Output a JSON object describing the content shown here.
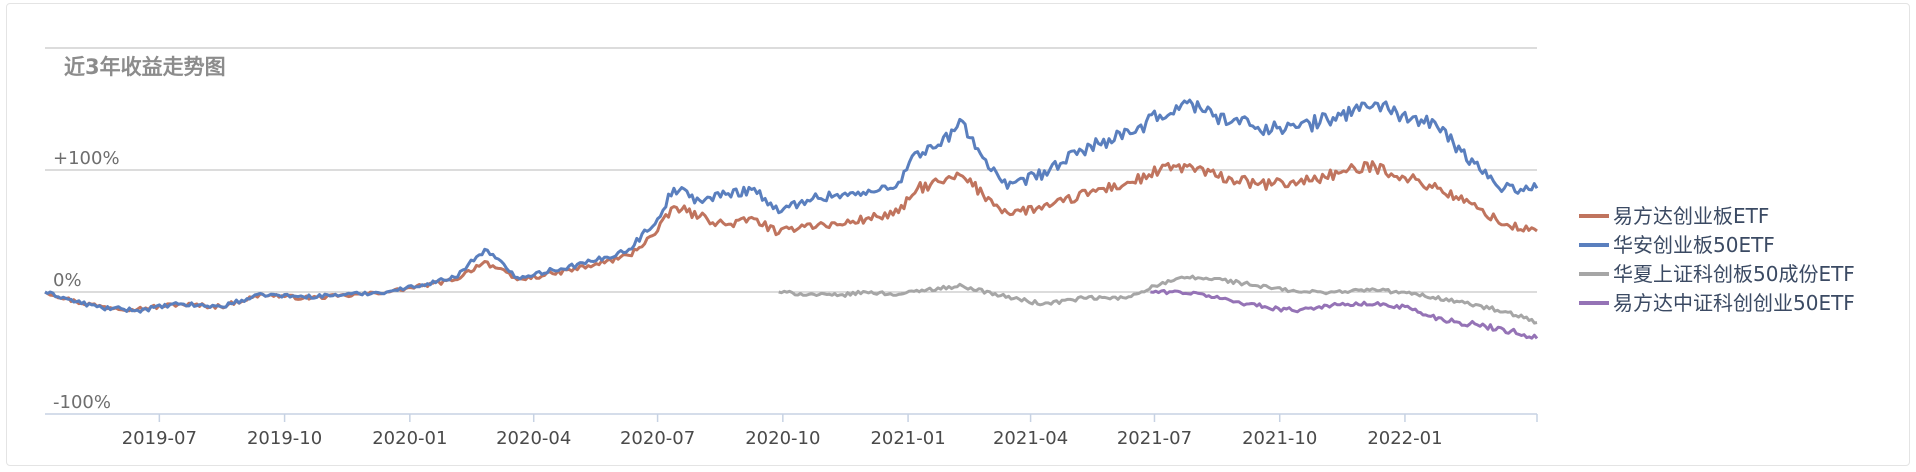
{
  "chart_data": {
    "type": "line",
    "title": "近3年收益走势图",
    "xlabel": "",
    "ylabel": "",
    "x_ticks": [
      "2019-07",
      "2019-10",
      "2020-01",
      "2020-04",
      "2020-07",
      "2020-10",
      "2021-01",
      "2021-04",
      "2021-07",
      "2021-10",
      "2022-01"
    ],
    "y_ticks": [
      {
        "value": 100,
        "label": "+100%"
      },
      {
        "value": 0,
        "label": "0%"
      },
      {
        "value": -100,
        "label": "-100%"
      }
    ],
    "xlim": [
      "2019-04-08",
      "2022-04-08"
    ],
    "ylim": [
      -100,
      200
    ],
    "grid": true,
    "legend_position": "right",
    "series": [
      {
        "name": "易方达创业板ETF",
        "color": "#c0745e",
        "x": [
          "2019-04-08",
          "2019-05-01",
          "2019-05-20",
          "2019-06-15",
          "2019-07-15",
          "2019-08-15",
          "2019-09-15",
          "2019-10-15",
          "2019-11-15",
          "2019-12-15",
          "2020-01-10",
          "2020-02-03",
          "2020-02-25",
          "2020-03-20",
          "2020-04-15",
          "2020-05-15",
          "2020-06-10",
          "2020-07-01",
          "2020-07-13",
          "2020-08-01",
          "2020-08-20",
          "2020-09-10",
          "2020-09-28",
          "2020-10-15",
          "2020-11-10",
          "2020-12-01",
          "2020-12-25",
          "2021-01-08",
          "2021-01-25",
          "2021-02-10",
          "2021-02-25",
          "2021-03-15",
          "2021-04-15",
          "2021-05-15",
          "2021-06-15",
          "2021-07-05",
          "2021-07-25",
          "2021-08-15",
          "2021-09-15",
          "2021-10-15",
          "2021-11-15",
          "2021-12-10",
          "2021-12-30",
          "2022-01-25",
          "2022-02-25",
          "2022-03-15",
          "2022-04-08"
        ],
        "y": [
          0,
          -8,
          -12,
          -14,
          -10,
          -12,
          -2,
          -5,
          -3,
          0,
          5,
          10,
          25,
          10,
          15,
          22,
          30,
          50,
          70,
          62,
          55,
          60,
          48,
          55,
          55,
          60,
          65,
          85,
          90,
          95,
          80,
          65,
          70,
          82,
          90,
          100,
          103,
          95,
          88,
          90,
          98,
          103,
          95,
          85,
          68,
          55,
          50
        ]
      },
      {
        "name": "华安创业板50ETF",
        "color": "#5a7fbe",
        "x": [
          "2019-04-08",
          "2019-05-01",
          "2019-05-20",
          "2019-06-15",
          "2019-07-15",
          "2019-08-15",
          "2019-09-15",
          "2019-10-15",
          "2019-11-15",
          "2019-12-15",
          "2020-01-10",
          "2020-02-03",
          "2020-02-25",
          "2020-03-20",
          "2020-04-15",
          "2020-05-15",
          "2020-06-10",
          "2020-07-01",
          "2020-07-13",
          "2020-08-01",
          "2020-08-20",
          "2020-09-10",
          "2020-09-28",
          "2020-10-15",
          "2020-11-10",
          "2020-12-01",
          "2020-12-25",
          "2021-01-08",
          "2021-01-25",
          "2021-02-10",
          "2021-02-25",
          "2021-03-15",
          "2021-04-15",
          "2021-05-15",
          "2021-06-15",
          "2021-07-05",
          "2021-07-25",
          "2021-08-15",
          "2021-09-15",
          "2021-10-15",
          "2021-11-15",
          "2021-12-10",
          "2021-12-30",
          "2022-01-25",
          "2022-02-25",
          "2022-03-15",
          "2022-04-08"
        ],
        "y": [
          0,
          -8,
          -13,
          -15,
          -10,
          -12,
          -2,
          -4,
          -2,
          0,
          6,
          12,
          35,
          12,
          18,
          25,
          35,
          60,
          85,
          75,
          80,
          85,
          65,
          75,
          80,
          80,
          90,
          115,
          120,
          140,
          110,
          85,
          100,
          120,
          130,
          145,
          155,
          145,
          135,
          135,
          145,
          155,
          145,
          135,
          100,
          85,
          85
        ]
      },
      {
        "name": "华夏上证科创板50成份ETF",
        "color": "#a6a6a6",
        "x": [
          "2020-09-28",
          "2020-10-20",
          "2020-11-10",
          "2020-12-01",
          "2020-12-25",
          "2021-01-15",
          "2021-02-10",
          "2021-03-10",
          "2021-04-10",
          "2021-05-10",
          "2021-06-10",
          "2021-07-01",
          "2021-07-25",
          "2021-08-20",
          "2021-09-15",
          "2021-10-15",
          "2021-11-10",
          "2021-12-10",
          "2022-01-10",
          "2022-02-10",
          "2022-03-10",
          "2022-04-08"
        ],
        "y": [
          0,
          -2,
          -3,
          0,
          -2,
          2,
          5,
          -3,
          -10,
          -5,
          -5,
          5,
          12,
          10,
          5,
          0,
          0,
          2,
          -2,
          -8,
          -15,
          -25
        ]
      },
      {
        "name": "易方达中证科创创业50ETF",
        "color": "#9573b6",
        "x": [
          "2021-06-28",
          "2021-07-20",
          "2021-08-10",
          "2021-08-30",
          "2021-09-20",
          "2021-10-10",
          "2021-10-30",
          "2021-11-20",
          "2021-12-10",
          "2022-01-01",
          "2022-01-20",
          "2022-02-10",
          "2022-03-01",
          "2022-03-20",
          "2022-04-08"
        ],
        "y": [
          0,
          0,
          -3,
          -8,
          -12,
          -15,
          -12,
          -10,
          -10,
          -12,
          -20,
          -25,
          -28,
          -32,
          -38
        ]
      }
    ]
  }
}
